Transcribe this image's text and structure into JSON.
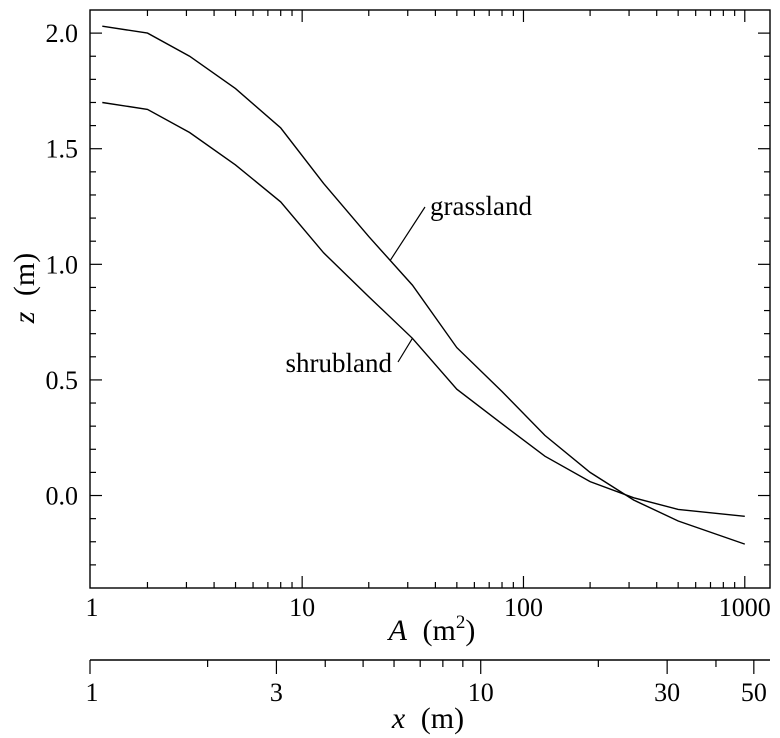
{
  "chart_data": {
    "type": "line",
    "x_axis": {
      "variable": "A",
      "unit_base": "m",
      "unit_exponent": "2",
      "scale": "log",
      "range": [
        1.1,
        1300
      ],
      "ticks": [
        1,
        10,
        100,
        1000
      ],
      "tick_labels": [
        "1",
        "10",
        "100",
        "1000"
      ]
    },
    "secondary_x_axis": {
      "variable": "x",
      "unit": "(m)",
      "scale": "log",
      "range": [
        1,
        55
      ],
      "ticks": [
        1,
        3,
        10,
        30,
        50
      ],
      "tick_labels": [
        "1",
        "3",
        "10",
        "30",
        "50"
      ]
    },
    "y_axis": {
      "variable": "z",
      "unit": "(m)",
      "range": [
        -0.4,
        2.1
      ],
      "ticks": [
        0.0,
        0.5,
        1.0,
        1.5,
        2.0
      ],
      "tick_labels": [
        "0.0",
        "0.5",
        "1.0",
        "1.5",
        "2.0"
      ]
    },
    "grid": false,
    "series": [
      {
        "name": "grassland",
        "x": [
          1.25,
          2,
          3.1,
          5,
          8,
          12.5,
          20,
          31.5,
          50,
          80,
          125,
          200,
          315,
          500,
          1000
        ],
        "y": [
          2.03,
          2.0,
          1.9,
          1.76,
          1.59,
          1.35,
          1.12,
          0.91,
          0.64,
          0.45,
          0.26,
          0.1,
          -0.02,
          -0.11,
          -0.21
        ]
      },
      {
        "name": "shrubland",
        "x": [
          1.25,
          2,
          3.1,
          5,
          8,
          12.5,
          20,
          31.5,
          50,
          80,
          125,
          200,
          315,
          500,
          1000
        ],
        "y": [
          1.7,
          1.67,
          1.57,
          1.43,
          1.27,
          1.05,
          0.86,
          0.68,
          0.46,
          0.31,
          0.17,
          0.06,
          -0.01,
          -0.06,
          -0.09
        ]
      }
    ],
    "annotations": [
      {
        "text": "grassland",
        "series": "grassland",
        "anchor_x": 25
      },
      {
        "text": "shrubland",
        "series": "shrubland",
        "anchor_x": 31.5
      }
    ]
  }
}
